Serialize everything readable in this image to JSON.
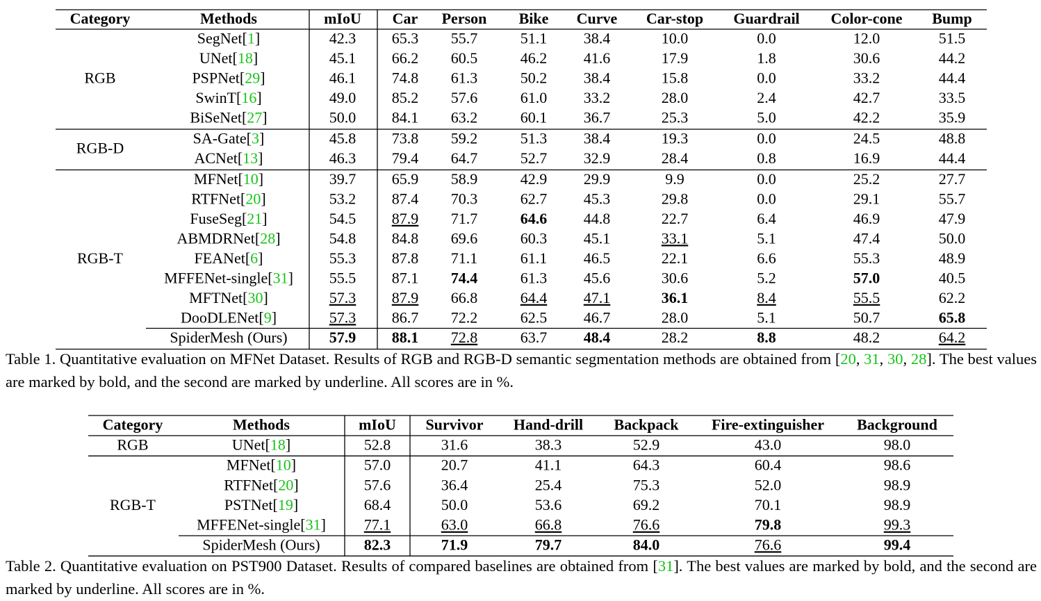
{
  "table1": {
    "header": [
      "Category",
      "Methods",
      "mIoU",
      "Car",
      "Person",
      "Bike",
      "Curve",
      "Car-stop",
      "Guardrail",
      "Color-cone",
      "Bump"
    ],
    "groups": [
      {
        "category": "RGB",
        "rows": [
          {
            "method": "SegNet[1]",
            "values": [
              "42.3",
              "65.3",
              "55.7",
              "51.1",
              "38.4",
              "10.0",
              "0.0",
              "12.0",
              "51.5"
            ]
          },
          {
            "method": "UNet[18]",
            "values": [
              "45.1",
              "66.2",
              "60.5",
              "46.2",
              "41.6",
              "17.9",
              "1.8",
              "30.6",
              "44.2"
            ]
          },
          {
            "method": "PSPNet[29]",
            "values": [
              "46.1",
              "74.8",
              "61.3",
              "50.2",
              "38.4",
              "15.8",
              "0.0",
              "33.2",
              "44.4"
            ]
          },
          {
            "method": "SwinT[16]",
            "values": [
              "49.0",
              "85.2",
              "57.6",
              "61.0",
              "33.2",
              "28.0",
              "2.4",
              "42.7",
              "33.5"
            ]
          },
          {
            "method": "BiSeNet[27]",
            "values": [
              "50.0",
              "84.1",
              "63.2",
              "60.1",
              "36.7",
              "25.3",
              "5.0",
              "42.2",
              "35.9"
            ]
          }
        ]
      },
      {
        "category": "RGB-D",
        "rows": [
          {
            "method": "SA-Gate[3]",
            "values": [
              "45.8",
              "73.8",
              "59.2",
              "51.3",
              "38.4",
              "19.3",
              "0.0",
              "24.5",
              "48.8"
            ]
          },
          {
            "method": "ACNet[13]",
            "values": [
              "46.3",
              "79.4",
              "64.7",
              "52.7",
              "32.9",
              "28.4",
              "0.8",
              "16.9",
              "44.4"
            ]
          }
        ]
      },
      {
        "category": "RGB-T",
        "rows": [
          {
            "method": "MFNet[10]",
            "values": [
              "39.7",
              "65.9",
              "58.9",
              "42.9",
              "29.9",
              "9.9",
              "0.0",
              "25.2",
              "27.7"
            ]
          },
          {
            "method": "RTFNet[20]",
            "values": [
              "53.2",
              "87.4",
              "70.3",
              "62.7",
              "45.3",
              "29.8",
              "0.0",
              "29.1",
              "55.7"
            ]
          },
          {
            "method": "FuseSeg[21]",
            "values": [
              "54.5",
              "87.9",
              "71.7",
              "64.6",
              "44.8",
              "22.7",
              "6.4",
              "46.9",
              "47.9"
            ]
          },
          {
            "method": "ABMDRNet[28]",
            "values": [
              "54.8",
              "84.8",
              "69.6",
              "60.3",
              "45.1",
              "33.1",
              "5.1",
              "47.4",
              "50.0"
            ]
          },
          {
            "method": "FEANet[6]",
            "values": [
              "55.3",
              "87.8",
              "71.1",
              "61.1",
              "46.5",
              "22.1",
              "6.6",
              "55.3",
              "48.9"
            ]
          },
          {
            "method": "MFFENet-single[31]",
            "values": [
              "55.5",
              "87.1",
              "74.4",
              "61.3",
              "45.6",
              "30.6",
              "5.2",
              "57.0",
              "40.5"
            ]
          },
          {
            "method": "MFTNet[30]",
            "values": [
              "57.3",
              "87.9",
              "66.8",
              "64.4",
              "47.1",
              "36.1",
              "8.4",
              "55.5",
              "62.2"
            ]
          },
          {
            "method": "DooDLENet[9]",
            "values": [
              "57.3",
              "86.7",
              "72.2",
              "62.5",
              "46.7",
              "28.0",
              "5.1",
              "50.7",
              "65.8"
            ]
          },
          {
            "method": "SpiderMesh (Ours)",
            "values": [
              "57.9",
              "88.1",
              "72.8",
              "63.7",
              "48.4",
              "28.2",
              "8.8",
              "48.2",
              "64.2"
            ]
          }
        ]
      }
    ],
    "caption": "Table 1. Quantitative evaluation on MFNet Dataset.  Results of RGB and RGB-D semantic segmentation methods are obtained from [20, 31, 30, 28]. The best values are marked by bold, and the second are marked by underline. All scores are in %."
  },
  "table2": {
    "header": [
      "Category",
      "Methods",
      "mIoU",
      "Survivor",
      "Hand-drill",
      "Backpack",
      "Fire-extinguisher",
      "Background"
    ],
    "groups": [
      {
        "category": "RGB",
        "rows": [
          {
            "method": "UNet[18]",
            "values": [
              "52.8",
              "31.6",
              "38.3",
              "52.9",
              "43.0",
              "98.0"
            ]
          }
        ]
      },
      {
        "category": "RGB-T",
        "rows": [
          {
            "method": "MFNet[10]",
            "values": [
              "57.0",
              "20.7",
              "41.1",
              "64.3",
              "60.4",
              "98.6"
            ]
          },
          {
            "method": "RTFNet[20]",
            "values": [
              "57.6",
              "36.4",
              "25.4",
              "75.3",
              "52.0",
              "98.9"
            ]
          },
          {
            "method": "PSTNet[19]",
            "values": [
              "68.4",
              "50.0",
              "53.6",
              "69.2",
              "70.1",
              "98.9"
            ]
          },
          {
            "method": "MFFENet-single[31]",
            "values": [
              "77.1",
              "63.0",
              "66.8",
              "76.6",
              "79.8",
              "99.3"
            ]
          },
          {
            "method": "SpiderMesh (Ours)",
            "values": [
              "82.3",
              "71.9",
              "79.7",
              "84.0",
              "76.6",
              "99.4"
            ]
          }
        ]
      }
    ],
    "caption": "Table 2. Quantitative evaluation on PST900 Dataset. Results of compared baselines are obtained from [31]. The best values are marked by bold, and the second are marked by underline. All scores are in %."
  }
}
